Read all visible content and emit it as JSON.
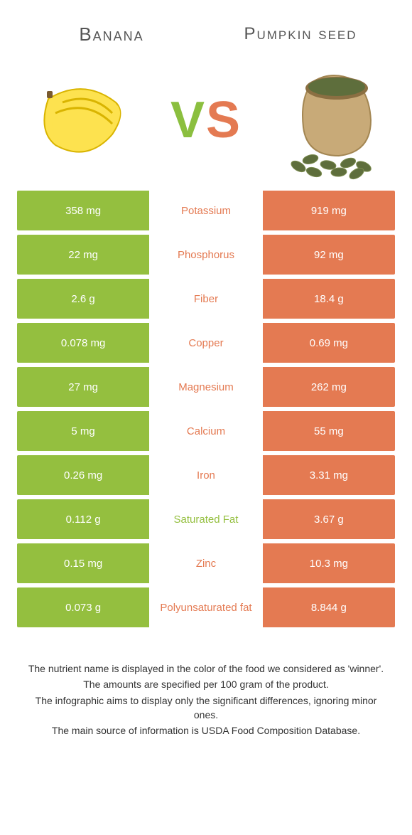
{
  "colors": {
    "left_bar": "#94bf3f",
    "right_bar": "#e47a52",
    "mid_left_text": "#94bf3f",
    "mid_right_text": "#e47a52",
    "title_text": "#555555",
    "body_text": "#333333",
    "bg": "#ffffff"
  },
  "header": {
    "left_title": "Banana",
    "right_title": "Pumpkin seed",
    "vs_v": "V",
    "vs_s": "S"
  },
  "rows": [
    {
      "left": "358 mg",
      "label": "Potassium",
      "right": "919 mg",
      "winner": "right"
    },
    {
      "left": "22 mg",
      "label": "Phosphorus",
      "right": "92 mg",
      "winner": "right"
    },
    {
      "left": "2.6 g",
      "label": "Fiber",
      "right": "18.4 g",
      "winner": "right"
    },
    {
      "left": "0.078 mg",
      "label": "Copper",
      "right": "0.69 mg",
      "winner": "right"
    },
    {
      "left": "27 mg",
      "label": "Magnesium",
      "right": "262 mg",
      "winner": "right"
    },
    {
      "left": "5 mg",
      "label": "Calcium",
      "right": "55 mg",
      "winner": "right"
    },
    {
      "left": "0.26 mg",
      "label": "Iron",
      "right": "3.31 mg",
      "winner": "right"
    },
    {
      "left": "0.112 g",
      "label": "Saturated Fat",
      "right": "3.67 g",
      "winner": "left"
    },
    {
      "left": "0.15 mg",
      "label": "Zinc",
      "right": "10.3 mg",
      "winner": "right"
    },
    {
      "left": "0.073 g",
      "label": "Polyunsaturated fat",
      "right": "8.844 g",
      "winner": "right"
    }
  ],
  "footer": {
    "l1": "The nutrient name is displayed in the color of the food we considered as 'winner'.",
    "l2": "The amounts are specified per 100 gram of the product.",
    "l3": "The infographic aims to display only the significant differences, ignoring minor ones.",
    "l4": "The main source of information is USDA Food Composition Database."
  }
}
